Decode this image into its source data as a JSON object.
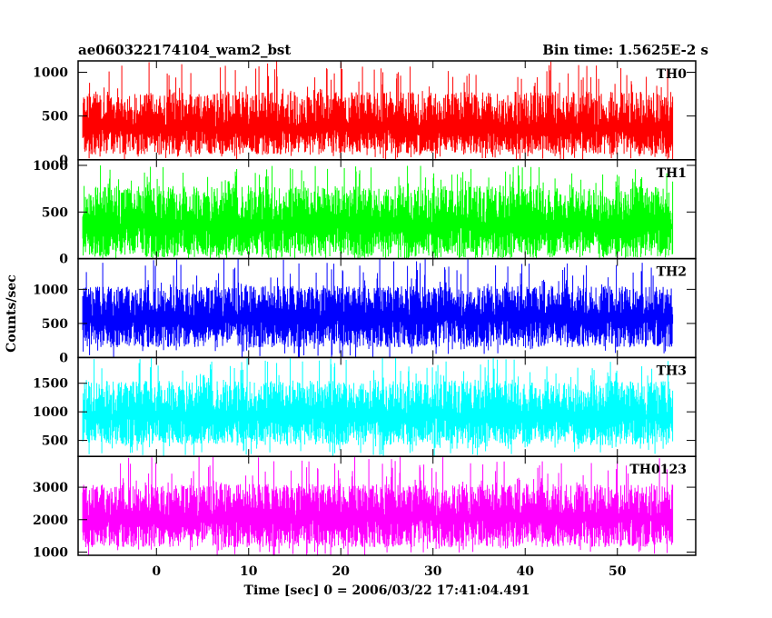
{
  "header": {
    "title": "ae060322174104_wam2_bst",
    "bin_time": "Bin time: 1.5625E-2 s"
  },
  "chart_data": {
    "type": "line",
    "title": "ae060322174104_wam2_bst",
    "subtitle": "Bin time: 1.5625E-2 s",
    "xlabel": "Time [sec] 0 = 2006/03/22 17:41:04.491",
    "ylabel": "Counts/sec",
    "xlim": [
      -8.5,
      58.5
    ],
    "x_data_range": [
      -8,
      56
    ],
    "xticks": [
      0,
      10,
      20,
      30,
      40,
      50
    ],
    "xtick_labels": [
      "0",
      "10",
      "20",
      "30",
      "40",
      "50"
    ],
    "grid": false,
    "panels": [
      {
        "name": "TH0",
        "color": "#ff0000",
        "ylim": [
          0,
          1130
        ],
        "yticks": [
          0,
          500,
          1000
        ],
        "ytick_labels": [
          "0",
          "500",
          "1000"
        ],
        "typical_range": [
          60,
          780
        ],
        "median": 380,
        "peak": 1130
      },
      {
        "name": "TH1",
        "color": "#00ff00",
        "ylim": [
          0,
          1060
        ],
        "yticks": [
          0,
          500,
          1000
        ],
        "ytick_labels": [
          "0",
          "500",
          "1000"
        ],
        "typical_range": [
          20,
          780
        ],
        "median": 370,
        "peak": 1000
      },
      {
        "name": "TH2",
        "color": "#0000ff",
        "ylim": [
          0,
          1450
        ],
        "yticks": [
          0,
          500,
          1000
        ],
        "ytick_labels": [
          "0",
          "500",
          "1000"
        ],
        "typical_range": [
          150,
          1050
        ],
        "median": 600,
        "peak": 1450
      },
      {
        "name": "TH3",
        "color": "#00ffff",
        "ylim": [
          220,
          1950
        ],
        "yticks": [
          500,
          1000,
          1500
        ],
        "ytick_labels": [
          "500",
          "1000",
          "1500"
        ],
        "typical_range": [
          420,
          1550
        ],
        "median": 950,
        "peak": 1950
      },
      {
        "name": "TH0123",
        "color": "#ff00ff",
        "ylim": [
          900,
          3950
        ],
        "yticks": [
          1000,
          2000,
          3000
        ],
        "ytick_labels": [
          "1000",
          "2000",
          "3000"
        ],
        "typical_range": [
          1150,
          3100
        ],
        "median": 2100,
        "peak": 3950
      }
    ]
  }
}
